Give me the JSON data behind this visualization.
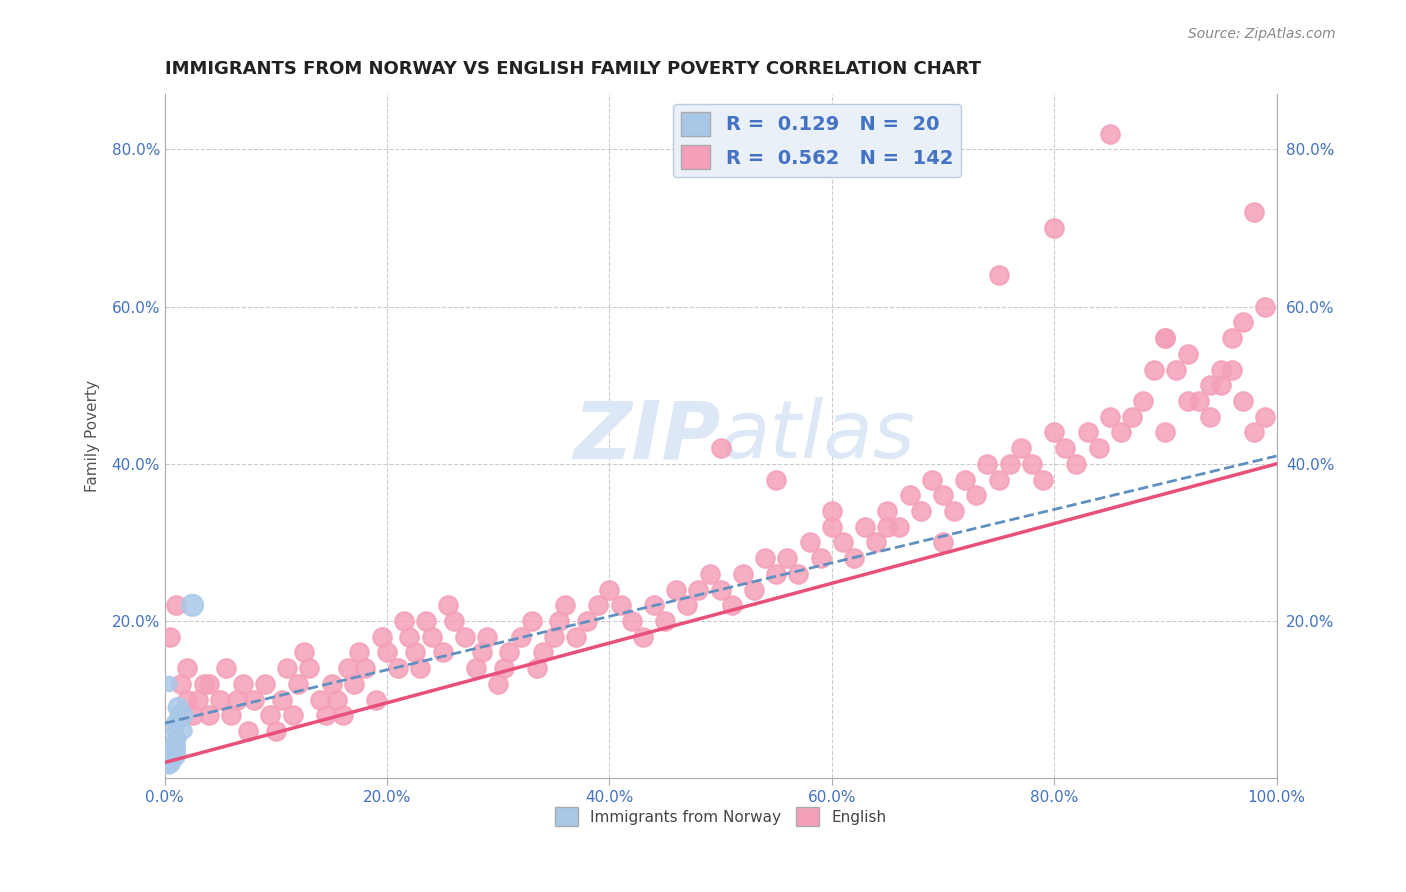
{
  "title": "IMMIGRANTS FROM NORWAY VS ENGLISH FAMILY POVERTY CORRELATION CHART",
  "source": "Source: ZipAtlas.com",
  "ylabel": "Family Poverty",
  "xlim": [
    0,
    1.0
  ],
  "ylim": [
    0,
    0.87
  ],
  "xticks": [
    0.0,
    0.2,
    0.4,
    0.6,
    0.8,
    1.0
  ],
  "xticklabels": [
    "0.0%",
    "20.0%",
    "40.0%",
    "60.0%",
    "80.0%",
    "100.0%"
  ],
  "yticks": [
    0.0,
    0.2,
    0.4,
    0.6,
    0.8
  ],
  "yticklabels": [
    "",
    "20.0%",
    "40.0%",
    "60.0%",
    "80.0%"
  ],
  "right_ytick_labels": [
    "20.0%",
    "40.0%",
    "60.0%",
    "80.0%"
  ],
  "norway_R": 0.129,
  "norway_N": 20,
  "english_R": 0.562,
  "english_N": 142,
  "norway_color": "#a8c8e8",
  "english_color": "#f4a0b8",
  "norway_line_color": "#6090c0",
  "english_line_color": "#e8507a",
  "grid_color": "#cccccc",
  "title_color": "#222222",
  "axis_label_color": "#555555",
  "tick_color": "#4472c4",
  "watermark_color": "#dce8f5",
  "legend_box_color": "#eaf0f8",
  "norway_x": [
    0.005,
    0.008,
    0.01,
    0.012,
    0.015,
    0.008,
    0.01,
    0.012,
    0.004,
    0.006,
    0.009,
    0.004,
    0.005,
    0.018,
    0.025,
    0.008,
    0.004,
    0.003,
    0.004,
    0.01
  ],
  "norway_y": [
    0.02,
    0.03,
    0.04,
    0.05,
    0.08,
    0.06,
    0.07,
    0.09,
    0.03,
    0.025,
    0.05,
    0.12,
    0.04,
    0.06,
    0.22,
    0.05,
    0.03,
    0.02,
    0.015,
    0.04
  ],
  "norway_size": [
    200,
    280,
    150,
    120,
    240,
    100,
    170,
    190,
    140,
    120,
    100,
    110,
    90,
    100,
    230,
    90,
    80,
    70,
    110,
    180
  ],
  "english_x": [
    0.005,
    0.01,
    0.015,
    0.02,
    0.02,
    0.025,
    0.03,
    0.035,
    0.04,
    0.04,
    0.05,
    0.055,
    0.06,
    0.065,
    0.07,
    0.075,
    0.08,
    0.09,
    0.095,
    0.1,
    0.105,
    0.11,
    0.115,
    0.12,
    0.125,
    0.13,
    0.14,
    0.145,
    0.15,
    0.155,
    0.16,
    0.165,
    0.17,
    0.175,
    0.18,
    0.19,
    0.195,
    0.2,
    0.21,
    0.215,
    0.22,
    0.225,
    0.23,
    0.235,
    0.24,
    0.25,
    0.255,
    0.26,
    0.27,
    0.28,
    0.285,
    0.29,
    0.3,
    0.305,
    0.31,
    0.32,
    0.33,
    0.335,
    0.34,
    0.35,
    0.355,
    0.36,
    0.37,
    0.38,
    0.39,
    0.4,
    0.41,
    0.42,
    0.43,
    0.44,
    0.45,
    0.46,
    0.47,
    0.48,
    0.49,
    0.5,
    0.51,
    0.52,
    0.53,
    0.54,
    0.55,
    0.56,
    0.57,
    0.58,
    0.59,
    0.6,
    0.61,
    0.62,
    0.63,
    0.64,
    0.65,
    0.66,
    0.67,
    0.68,
    0.69,
    0.7,
    0.71,
    0.72,
    0.73,
    0.74,
    0.75,
    0.76,
    0.77,
    0.78,
    0.79,
    0.8,
    0.81,
    0.82,
    0.83,
    0.84,
    0.85,
    0.86,
    0.87,
    0.88,
    0.89,
    0.9,
    0.91,
    0.92,
    0.93,
    0.94,
    0.95,
    0.96,
    0.97,
    0.98,
    0.99,
    0.5,
    0.55,
    0.6,
    0.65,
    0.7,
    0.75,
    0.8,
    0.85,
    0.9,
    0.95,
    0.98,
    0.99,
    0.97,
    0.96,
    0.94,
    0.92,
    0.9
  ],
  "english_y": [
    0.18,
    0.22,
    0.12,
    0.1,
    0.14,
    0.08,
    0.1,
    0.12,
    0.08,
    0.12,
    0.1,
    0.14,
    0.08,
    0.1,
    0.12,
    0.06,
    0.1,
    0.12,
    0.08,
    0.06,
    0.1,
    0.14,
    0.08,
    0.12,
    0.16,
    0.14,
    0.1,
    0.08,
    0.12,
    0.1,
    0.08,
    0.14,
    0.12,
    0.16,
    0.14,
    0.1,
    0.18,
    0.16,
    0.14,
    0.2,
    0.18,
    0.16,
    0.14,
    0.2,
    0.18,
    0.16,
    0.22,
    0.2,
    0.18,
    0.14,
    0.16,
    0.18,
    0.12,
    0.14,
    0.16,
    0.18,
    0.2,
    0.14,
    0.16,
    0.18,
    0.2,
    0.22,
    0.18,
    0.2,
    0.22,
    0.24,
    0.22,
    0.2,
    0.18,
    0.22,
    0.2,
    0.24,
    0.22,
    0.24,
    0.26,
    0.24,
    0.22,
    0.26,
    0.24,
    0.28,
    0.26,
    0.28,
    0.26,
    0.3,
    0.28,
    0.32,
    0.3,
    0.28,
    0.32,
    0.3,
    0.34,
    0.32,
    0.36,
    0.34,
    0.38,
    0.36,
    0.34,
    0.38,
    0.36,
    0.4,
    0.38,
    0.4,
    0.42,
    0.4,
    0.38,
    0.44,
    0.42,
    0.4,
    0.44,
    0.42,
    0.46,
    0.44,
    0.46,
    0.48,
    0.52,
    0.56,
    0.52,
    0.54,
    0.48,
    0.46,
    0.5,
    0.52,
    0.48,
    0.44,
    0.46,
    0.42,
    0.38,
    0.34,
    0.32,
    0.3,
    0.64,
    0.7,
    0.82,
    0.56,
    0.52,
    0.72,
    0.6,
    0.58,
    0.56,
    0.5,
    0.48,
    0.44
  ]
}
